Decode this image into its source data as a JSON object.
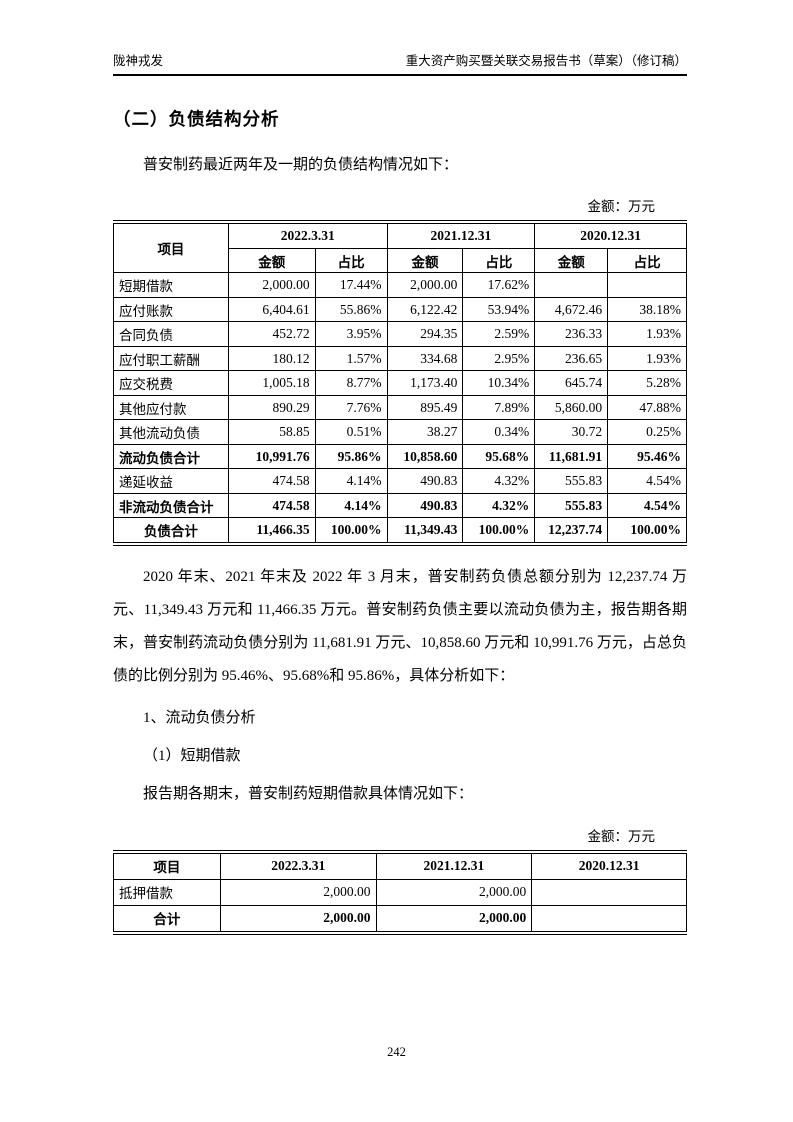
{
  "header": {
    "left": "陇神戎发",
    "right": "重大资产购买暨关联交易报告书（草案）（修订稿）"
  },
  "section": {
    "title": "（二）负债结构分析",
    "intro": "普安制药最近两年及一期的负债结构情况如下："
  },
  "table1": {
    "unit_label": "金额：万元",
    "header": {
      "item": "项目",
      "periods": [
        "2022.3.31",
        "2021.12.31",
        "2020.12.31"
      ],
      "sub_amount": "金额",
      "sub_ratio": "占比"
    },
    "rows": [
      {
        "item": "短期借款",
        "bold": false,
        "center": false,
        "values": [
          "2,000.00",
          "17.44%",
          "2,000.00",
          "17.62%",
          "",
          ""
        ]
      },
      {
        "item": "应付账款",
        "bold": false,
        "center": false,
        "values": [
          "6,404.61",
          "55.86%",
          "6,122.42",
          "53.94%",
          "4,672.46",
          "38.18%"
        ]
      },
      {
        "item": "合同负债",
        "bold": false,
        "center": false,
        "values": [
          "452.72",
          "3.95%",
          "294.35",
          "2.59%",
          "236.33",
          "1.93%"
        ]
      },
      {
        "item": "应付职工薪酬",
        "bold": false,
        "center": false,
        "values": [
          "180.12",
          "1.57%",
          "334.68",
          "2.95%",
          "236.65",
          "1.93%"
        ]
      },
      {
        "item": "应交税费",
        "bold": false,
        "center": false,
        "values": [
          "1,005.18",
          "8.77%",
          "1,173.40",
          "10.34%",
          "645.74",
          "5.28%"
        ]
      },
      {
        "item": "其他应付款",
        "bold": false,
        "center": false,
        "values": [
          "890.29",
          "7.76%",
          "895.49",
          "7.89%",
          "5,860.00",
          "47.88%"
        ]
      },
      {
        "item": "其他流动负债",
        "bold": false,
        "center": false,
        "values": [
          "58.85",
          "0.51%",
          "38.27",
          "0.34%",
          "30.72",
          "0.25%"
        ]
      },
      {
        "item": "流动负债合计",
        "bold": true,
        "center": false,
        "values": [
          "10,991.76",
          "95.86%",
          "10,858.60",
          "95.68%",
          "11,681.91",
          "95.46%"
        ]
      },
      {
        "item": "递延收益",
        "bold": false,
        "center": false,
        "values": [
          "474.58",
          "4.14%",
          "490.83",
          "4.32%",
          "555.83",
          "4.54%"
        ]
      },
      {
        "item": "非流动负债合计",
        "bold": true,
        "center": false,
        "values": [
          "474.58",
          "4.14%",
          "490.83",
          "4.32%",
          "555.83",
          "4.54%"
        ]
      },
      {
        "item": "负债合计",
        "bold": true,
        "center": true,
        "values": [
          "11,466.35",
          "100.00%",
          "11,349.43",
          "100.00%",
          "12,237.74",
          "100.00%"
        ]
      }
    ]
  },
  "analysis": {
    "paragraph": "2020 年末、2021 年末及 2022 年 3 月末，普安制药负债总额分别为 12,237.74 万元、11,349.43 万元和 11,466.35 万元。普安制药负债主要以流动负债为主，报告期各期末，普安制药流动负债分别为 11,681.91 万元、10,858.60 万元和 10,991.76 万元，占总负债的比例分别为 95.46%、95.68%和 95.86%，具体分析如下：",
    "sub1": "1、流动负债分析",
    "sub2": "（1）短期借款",
    "para2": "报告期各期末，普安制药短期借款具体情况如下："
  },
  "table2": {
    "unit_label": "金额：万元",
    "headers": [
      "项目",
      "2022.3.31",
      "2021.12.31",
      "2020.12.31"
    ],
    "rows": [
      {
        "item": "抵押借款",
        "bold": false,
        "center": false,
        "values": [
          "2,000.00",
          "2,000.00",
          ""
        ]
      },
      {
        "item": "合计",
        "bold": true,
        "center": true,
        "values": [
          "2,000.00",
          "2,000.00",
          ""
        ]
      }
    ]
  },
  "footer": {
    "page_number": "242"
  }
}
